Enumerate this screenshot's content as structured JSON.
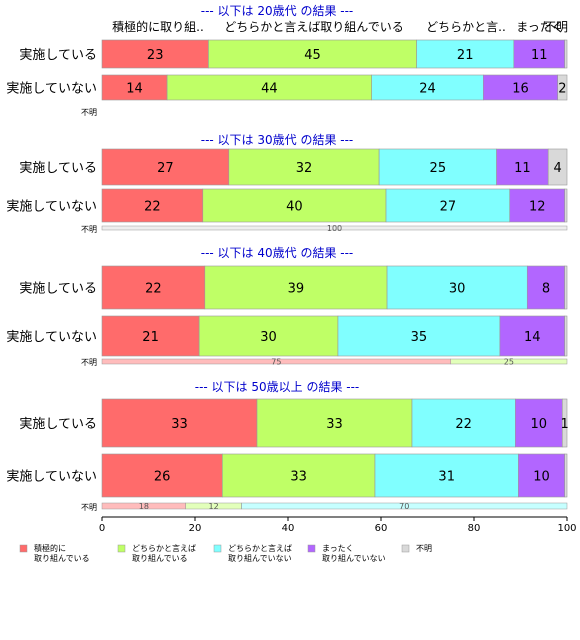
{
  "colors": {
    "positive": "#ff6b6b",
    "somewhat_positive": "#bfff66",
    "somewhat_negative": "#80ffff",
    "negative": "#b266ff",
    "unknown": "#d9d9d9",
    "panel_title": "#0000cc"
  },
  "chart_data": {
    "type": "bar",
    "orientation": "horizontal",
    "stacked": true,
    "percent_scale": true,
    "xlim": [
      0,
      100
    ],
    "xticks": [
      0,
      20,
      40,
      60,
      80,
      100
    ],
    "grid": false,
    "legend_placement": "bottom",
    "categories": [
      "積極的に取り組んでいる",
      "どちらかと言えば取り組んでいる",
      "どちらかと言えば取り組んでいない",
      "まったく取り組んでいない",
      "不明"
    ],
    "legend_labels": [
      "積極的に\n取り組んでいる",
      "どちらかと言えば\n取り組んでいる",
      "どちらかと言えば\n取り組んでいない",
      "まったく\n取り組んでいない",
      "不明"
    ],
    "column_headers": [
      "積極的に取り組..",
      "どちらかと言えば取り組んでいる",
      "どちらかと言..",
      "まったく",
      "不明"
    ],
    "panels": [
      {
        "title": "--- 以下は 20歳代 の結果 ---",
        "rows": [
          {
            "label": "実施している",
            "values": [
              23,
              45,
              21,
              11,
              0.5
            ],
            "labels": [
              "23",
              "45",
              "21",
              "11",
              ""
            ]
          },
          {
            "label": "実施していない",
            "values": [
              14,
              44,
              24,
              16,
              2
            ],
            "labels": [
              "14",
              "44",
              "24",
              "16",
              "2"
            ]
          }
        ],
        "unknown_label": "不明",
        "unknown_values": [],
        "unknown_labels": []
      },
      {
        "title": "--- 以下は 30歳代 の結果 ---",
        "rows": [
          {
            "label": "実施している",
            "values": [
              27,
              32,
              25,
              11,
              4
            ],
            "labels": [
              "27",
              "32",
              "25",
              "11",
              "4"
            ]
          },
          {
            "label": "実施していない",
            "values": [
              22,
              40,
              27,
              12,
              0.5
            ],
            "labels": [
              "22",
              "40",
              "27",
              "12",
              ""
            ]
          }
        ],
        "unknown_label": "不明",
        "unknown_values": [
          0,
          0,
          0,
          0,
          100
        ],
        "unknown_labels": [
          "",
          "",
          "",
          "",
          "100"
        ]
      },
      {
        "title": "--- 以下は 40歳代 の結果 ---",
        "rows": [
          {
            "label": "実施している",
            "values": [
              22,
              39,
              30,
              8,
              0.5
            ],
            "labels": [
              "22",
              "39",
              "30",
              "8",
              ""
            ]
          },
          {
            "label": "実施していない",
            "values": [
              21,
              30,
              35,
              14,
              0.5
            ],
            "labels": [
              "21",
              "30",
              "35",
              "14",
              ""
            ]
          }
        ],
        "unknown_label": "不明",
        "unknown_values": [
          75,
          25,
          0,
          0,
          0
        ],
        "unknown_labels": [
          "75",
          "25",
          "",
          "",
          ""
        ]
      },
      {
        "title": "--- 以下は 50歳以上 の結果 ---",
        "rows": [
          {
            "label": "実施している",
            "values": [
              33,
              33,
              22,
              10,
              1
            ],
            "labels": [
              "33",
              "33",
              "22",
              "10",
              "1"
            ]
          },
          {
            "label": "実施していない",
            "values": [
              26,
              33,
              31,
              10,
              0.5
            ],
            "labels": [
              "26",
              "33",
              "31",
              "10",
              ""
            ]
          }
        ],
        "unknown_label": "不明",
        "unknown_values": [
          18,
          12,
          70,
          0,
          0
        ],
        "unknown_labels": [
          "18",
          "12",
          "70",
          "",
          ""
        ]
      }
    ]
  }
}
